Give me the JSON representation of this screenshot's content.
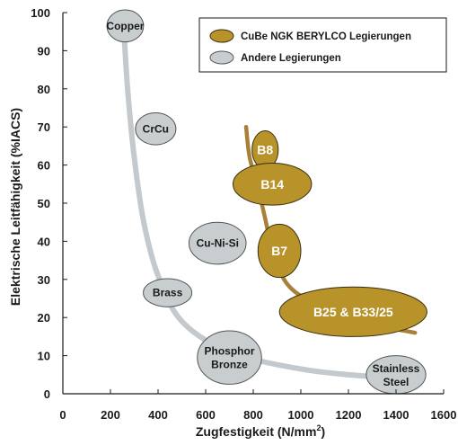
{
  "chart_data": {
    "type": "scatter",
    "xlabel": "Zugfestigkeit (N/mm",
    "xlabel_sup": "2",
    "xlabel_end": ")",
    "ylabel": "Elektrische Leitfähigkeit (%IACS)",
    "xlim": [
      0,
      1600
    ],
    "ylim": [
      0,
      100
    ],
    "x_ticks": [
      "0",
      "200",
      "400",
      "600",
      "800",
      "1000",
      "1200",
      "1400",
      "1600"
    ],
    "y_ticks": [
      "0",
      "10",
      "20",
      "30",
      "40",
      "50",
      "60",
      "70",
      "80",
      "90",
      "100"
    ],
    "grid": false,
    "legend_position": "top-right",
    "series": [
      {
        "name": "CuBe NGK BERYLCO Legierungen",
        "color": "#b8932a",
        "curve": [
          [
            770,
            70
          ],
          [
            785,
            62
          ],
          [
            820,
            54
          ],
          [
            850,
            46
          ],
          [
            880,
            38
          ],
          [
            940,
            29
          ],
          [
            1050,
            24
          ],
          [
            1250,
            19
          ],
          [
            1480,
            16
          ]
        ],
        "points": [
          {
            "label": "B8",
            "x": 850,
            "y": 64,
            "rx": 55,
            "ry": 5
          },
          {
            "label": "B14",
            "x": 880,
            "y": 55,
            "rx": 165,
            "ry": 5.5
          },
          {
            "label": "B7",
            "x": 910,
            "y": 37.5,
            "rx": 90,
            "ry": 7
          },
          {
            "label": "B25 & B33/25",
            "x": 1220,
            "y": 21.5,
            "rx": 310,
            "ry": 6.5
          }
        ]
      },
      {
        "name": "Andere Legierungen",
        "color": "#c8cdd0",
        "curve": [
          [
            255,
            97
          ],
          [
            272,
            80
          ],
          [
            300,
            62
          ],
          [
            340,
            45
          ],
          [
            400,
            31
          ],
          [
            500,
            19
          ],
          [
            700,
            11
          ],
          [
            1000,
            6.5
          ],
          [
            1300,
            4.5
          ],
          [
            1450,
            4.5
          ]
        ],
        "points": [
          {
            "label": "Copper",
            "x": 262,
            "y": 96.5,
            "rx": 77,
            "ry": 4.2
          },
          {
            "label": "CrCu",
            "x": 390,
            "y": 69.5,
            "rx": 85,
            "ry": 4.2
          },
          {
            "label": "Cu-Ni-Si",
            "x": 650,
            "y": 39.5,
            "rx": 120,
            "ry": 5.5
          },
          {
            "label": "Brass",
            "x": 440,
            "y": 26.5,
            "rx": 102,
            "ry": 3.7
          },
          {
            "label": "Phosphor Bronze",
            "x": 700,
            "y": 9.5,
            "rx": 135,
            "ry": 7
          },
          {
            "label": "Stainless Steel",
            "x": 1400,
            "y": 5,
            "rx": 125,
            "ry": 5
          }
        ]
      }
    ]
  }
}
